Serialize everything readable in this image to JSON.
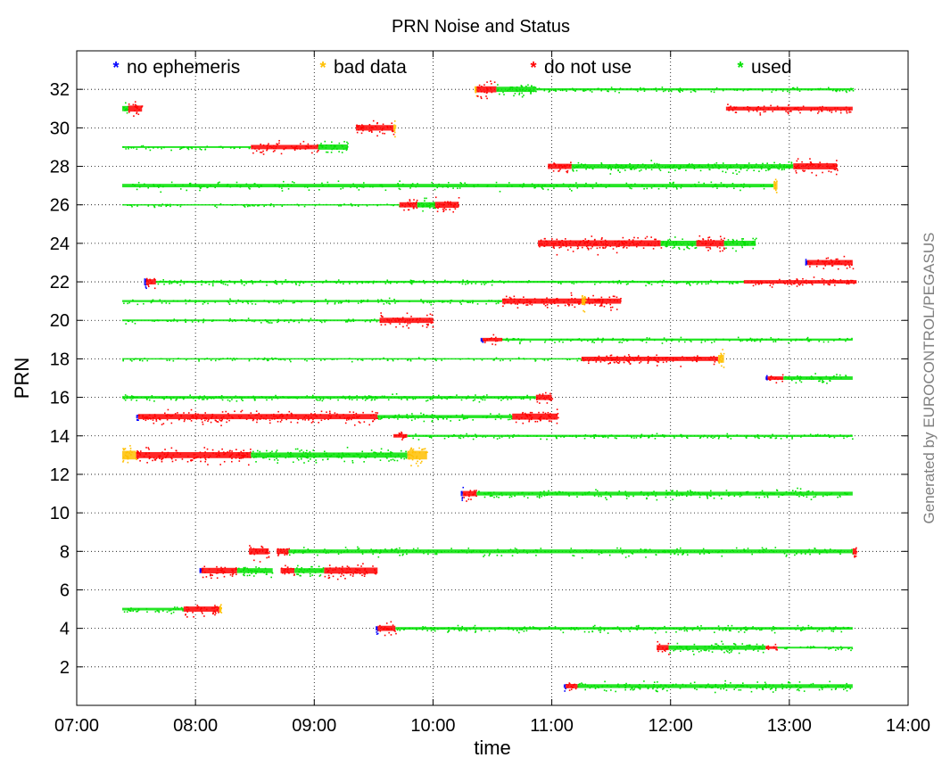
{
  "chart_data": {
    "type": "scatter",
    "title": "PRN Noise and Status",
    "xlabel": "time",
    "ylabel": "PRN",
    "credit": "Generated by EUROCONTROL/PEGASUS",
    "x_unit": "HH:MM",
    "xlim": [
      "07:00",
      "14:00"
    ],
    "ylim": [
      0,
      34
    ],
    "x_ticks": [
      "07:00",
      "08:00",
      "09:00",
      "10:00",
      "11:00",
      "12:00",
      "13:00",
      "14:00"
    ],
    "y_ticks": [
      2,
      4,
      6,
      8,
      10,
      12,
      14,
      16,
      18,
      20,
      22,
      24,
      26,
      28,
      30,
      32
    ],
    "grid": true,
    "legend_position": "top",
    "legend": [
      {
        "key": "no_ephemeris",
        "label": "no ephemeris",
        "color": "#0000ff"
      },
      {
        "key": "bad_data",
        "label": "bad data",
        "color": "#ffbf00"
      },
      {
        "key": "do_not_use",
        "label": "do not use",
        "color": "#ff0000"
      },
      {
        "key": "used",
        "label": "used",
        "color": "#00e000"
      }
    ],
    "series": [
      {
        "prn": 1,
        "segments": [
          {
            "status": "no_ephemeris",
            "start": "11:06",
            "end": "11:07",
            "noise": 0.2
          },
          {
            "status": "do_not_use",
            "start": "11:07",
            "end": "11:13",
            "noise": 0.25
          },
          {
            "status": "used",
            "start": "11:13",
            "end": "13:32",
            "noise": 0.22
          }
        ]
      },
      {
        "prn": 3,
        "segments": [
          {
            "status": "do_not_use",
            "start": "11:53",
            "end": "11:59",
            "noise": 0.3
          },
          {
            "status": "used",
            "start": "11:59",
            "end": "12:48",
            "noise": 0.25
          },
          {
            "status": "do_not_use",
            "start": "12:48",
            "end": "12:54",
            "noise": 0.15
          },
          {
            "status": "used",
            "start": "12:54",
            "end": "13:32",
            "noise": 0.1
          }
        ]
      },
      {
        "prn": 4,
        "segments": [
          {
            "status": "no_ephemeris",
            "start": "09:31",
            "end": "09:32",
            "noise": 0.25
          },
          {
            "status": "do_not_use",
            "start": "09:32",
            "end": "09:41",
            "noise": 0.3
          },
          {
            "status": "used",
            "start": "09:41",
            "end": "13:32",
            "noise": 0.15
          }
        ]
      },
      {
        "prn": 5,
        "segments": [
          {
            "status": "used",
            "start": "07:23",
            "end": "07:54",
            "noise": 0.15
          },
          {
            "status": "do_not_use",
            "start": "07:54",
            "end": "08:12",
            "noise": 0.3
          },
          {
            "status": "bad_data",
            "start": "08:12",
            "end": "08:13",
            "noise": 0.4
          }
        ]
      },
      {
        "prn": 7,
        "segments": [
          {
            "status": "no_ephemeris",
            "start": "08:02",
            "end": "08:03",
            "noise": 0.3
          },
          {
            "status": "do_not_use",
            "start": "08:03",
            "end": "08:21",
            "noise": 0.32
          },
          {
            "status": "used",
            "start": "08:21",
            "end": "08:39",
            "noise": 0.28
          },
          {
            "status": "do_not_use",
            "start": "08:43",
            "end": "08:50",
            "noise": 0.3
          },
          {
            "status": "used",
            "start": "08:50",
            "end": "09:05",
            "noise": 0.28
          },
          {
            "status": "do_not_use",
            "start": "09:05",
            "end": "09:32",
            "noise": 0.35
          }
        ]
      },
      {
        "prn": 8,
        "segments": [
          {
            "status": "do_not_use",
            "start": "08:27",
            "end": "08:37",
            "noise": 0.35
          },
          {
            "status": "do_not_use",
            "start": "08:41",
            "end": "08:47",
            "noise": 0.3
          },
          {
            "status": "used",
            "start": "08:47",
            "end": "13:32",
            "noise": 0.22
          },
          {
            "status": "do_not_use",
            "start": "13:32",
            "end": "13:34",
            "noise": 0.35
          }
        ]
      },
      {
        "prn": 11,
        "segments": [
          {
            "status": "no_ephemeris",
            "start": "10:14",
            "end": "10:15",
            "noise": 0.3
          },
          {
            "status": "do_not_use",
            "start": "10:15",
            "end": "10:22",
            "noise": 0.3
          },
          {
            "status": "used",
            "start": "10:22",
            "end": "13:32",
            "noise": 0.22
          }
        ]
      },
      {
        "prn": 13,
        "segments": [
          {
            "status": "bad_data",
            "start": "07:23",
            "end": "07:30",
            "noise": 0.5
          },
          {
            "status": "do_not_use",
            "start": "07:30",
            "end": "08:28",
            "noise": 0.35
          },
          {
            "status": "used",
            "start": "08:28",
            "end": "09:47",
            "noise": 0.3
          },
          {
            "status": "bad_data",
            "start": "09:47",
            "end": "09:57",
            "noise": 0.5
          }
        ]
      },
      {
        "prn": 14,
        "segments": [
          {
            "status": "do_not_use",
            "start": "09:40",
            "end": "09:47",
            "noise": 0.2
          },
          {
            "status": "used",
            "start": "09:47",
            "end": "13:32",
            "noise": 0.12
          }
        ]
      },
      {
        "prn": 15,
        "segments": [
          {
            "status": "no_ephemeris",
            "start": "07:30",
            "end": "07:31",
            "noise": 0.2
          },
          {
            "status": "do_not_use",
            "start": "07:31",
            "end": "09:32",
            "noise": 0.3
          },
          {
            "status": "used",
            "start": "09:32",
            "end": "10:40",
            "noise": 0.18
          },
          {
            "status": "do_not_use",
            "start": "10:40",
            "end": "11:03",
            "noise": 0.35
          }
        ]
      },
      {
        "prn": 16,
        "segments": [
          {
            "status": "used",
            "start": "07:23",
            "end": "10:52",
            "noise": 0.15
          },
          {
            "status": "do_not_use",
            "start": "10:52",
            "end": "11:00",
            "noise": 0.3
          }
        ]
      },
      {
        "prn": 17,
        "segments": [
          {
            "status": "no_ephemeris",
            "start": "12:48",
            "end": "12:49",
            "noise": 0.2
          },
          {
            "status": "do_not_use",
            "start": "12:49",
            "end": "12:57",
            "noise": 0.2
          },
          {
            "status": "used",
            "start": "12:57",
            "end": "13:32",
            "noise": 0.2
          }
        ]
      },
      {
        "prn": 18,
        "segments": [
          {
            "status": "used",
            "start": "07:23",
            "end": "11:15",
            "noise": 0.08
          },
          {
            "status": "do_not_use",
            "start": "11:15",
            "end": "12:24",
            "noise": 0.25
          },
          {
            "status": "bad_data",
            "start": "12:24",
            "end": "12:27",
            "noise": 0.45
          }
        ]
      },
      {
        "prn": 19,
        "segments": [
          {
            "status": "no_ephemeris",
            "start": "10:24",
            "end": "10:25",
            "noise": 0.2
          },
          {
            "status": "do_not_use",
            "start": "10:25",
            "end": "10:35",
            "noise": 0.2
          },
          {
            "status": "used",
            "start": "10:35",
            "end": "13:32",
            "noise": 0.12
          }
        ]
      },
      {
        "prn": 20,
        "segments": [
          {
            "status": "used",
            "start": "07:23",
            "end": "09:33",
            "noise": 0.1
          },
          {
            "status": "do_not_use",
            "start": "09:33",
            "end": "10:00",
            "noise": 0.3
          }
        ]
      },
      {
        "prn": 21,
        "segments": [
          {
            "status": "used",
            "start": "07:23",
            "end": "10:35",
            "noise": 0.12
          },
          {
            "status": "do_not_use",
            "start": "10:35",
            "end": "11:35",
            "noise": 0.3
          },
          {
            "status": "bad_data",
            "start": "11:15",
            "end": "11:17",
            "noise": 0.45
          }
        ]
      },
      {
        "prn": 22,
        "segments": [
          {
            "status": "no_ephemeris",
            "start": "07:34",
            "end": "07:35",
            "noise": 0.4
          },
          {
            "status": "do_not_use",
            "start": "07:35",
            "end": "07:40",
            "noise": 0.3
          },
          {
            "status": "used",
            "start": "07:40",
            "end": "12:37",
            "noise": 0.12
          },
          {
            "status": "do_not_use",
            "start": "12:37",
            "end": "13:34",
            "noise": 0.2
          }
        ]
      },
      {
        "prn": 23,
        "segments": [
          {
            "status": "no_ephemeris",
            "start": "13:08",
            "end": "13:09",
            "noise": 0.25
          },
          {
            "status": "do_not_use",
            "start": "13:09",
            "end": "13:32",
            "noise": 0.3
          }
        ]
      },
      {
        "prn": 24,
        "segments": [
          {
            "status": "do_not_use",
            "start": "10:53",
            "end": "11:55",
            "noise": 0.35
          },
          {
            "status": "used",
            "start": "11:55",
            "end": "12:13",
            "noise": 0.3
          },
          {
            "status": "do_not_use",
            "start": "12:13",
            "end": "12:27",
            "noise": 0.35
          },
          {
            "status": "used",
            "start": "12:27",
            "end": "12:43",
            "noise": 0.3
          }
        ]
      },
      {
        "prn": 26,
        "segments": [
          {
            "status": "used",
            "start": "07:23",
            "end": "09:43",
            "noise": 0.08
          },
          {
            "status": "do_not_use",
            "start": "09:43",
            "end": "09:52",
            "noise": 0.3
          },
          {
            "status": "used",
            "start": "09:52",
            "end": "10:01",
            "noise": 0.3
          },
          {
            "status": "do_not_use",
            "start": "10:01",
            "end": "10:13",
            "noise": 0.35
          }
        ]
      },
      {
        "prn": 27,
        "segments": [
          {
            "status": "used",
            "start": "07:23",
            "end": "12:52",
            "noise": 0.2
          },
          {
            "status": "bad_data",
            "start": "12:52",
            "end": "12:54",
            "noise": 0.45
          }
        ]
      },
      {
        "prn": 28,
        "segments": [
          {
            "status": "do_not_use",
            "start": "10:58",
            "end": "11:10",
            "noise": 0.3
          },
          {
            "status": "used",
            "start": "11:10",
            "end": "13:02",
            "noise": 0.25
          },
          {
            "status": "do_not_use",
            "start": "13:02",
            "end": "13:24",
            "noise": 0.35
          }
        ]
      },
      {
        "prn": 29,
        "segments": [
          {
            "status": "used",
            "start": "07:23",
            "end": "08:28",
            "noise": 0.1
          },
          {
            "status": "do_not_use",
            "start": "08:28",
            "end": "09:02",
            "noise": 0.25
          },
          {
            "status": "used",
            "start": "09:02",
            "end": "09:17",
            "noise": 0.3
          }
        ]
      },
      {
        "prn": 30,
        "segments": [
          {
            "status": "do_not_use",
            "start": "09:21",
            "end": "09:40",
            "noise": 0.32
          },
          {
            "status": "bad_data",
            "start": "09:40",
            "end": "09:41",
            "noise": 0.4
          }
        ]
      },
      {
        "prn": 31,
        "segments": [
          {
            "status": "used",
            "start": "07:23",
            "end": "07:26",
            "noise": 0.3
          },
          {
            "status": "do_not_use",
            "start": "07:26",
            "end": "07:33",
            "noise": 0.35
          },
          {
            "status": "do_not_use",
            "start": "12:28",
            "end": "13:32",
            "noise": 0.22
          }
        ]
      },
      {
        "prn": 32,
        "segments": [
          {
            "status": "bad_data",
            "start": "10:21",
            "end": "10:22",
            "noise": 0.35
          },
          {
            "status": "do_not_use",
            "start": "10:22",
            "end": "10:32",
            "noise": 0.35
          },
          {
            "status": "used",
            "start": "10:32",
            "end": "10:52",
            "noise": 0.3
          },
          {
            "status": "used",
            "start": "10:52",
            "end": "13:32",
            "noise": 0.12
          }
        ]
      }
    ]
  }
}
